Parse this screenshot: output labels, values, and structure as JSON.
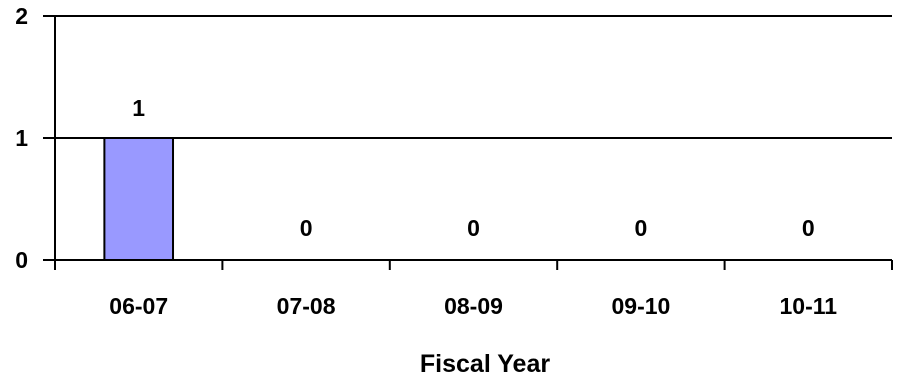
{
  "chart_data": {
    "type": "bar",
    "title": "",
    "xlabel": "Fiscal Year",
    "ylabel": "",
    "categories": [
      "06-07",
      "07-08",
      "08-09",
      "09-10",
      "10-11"
    ],
    "values": [
      1,
      0,
      0,
      0,
      0
    ],
    "data_labels": [
      "1",
      "0",
      "0",
      "0",
      "0"
    ],
    "ylim": [
      0,
      2
    ],
    "yticks": [
      0,
      1,
      2
    ],
    "ytick_labels": [
      "0",
      "1",
      "2"
    ],
    "grid": true,
    "legend": "none",
    "colors": {
      "bar_fill": "#9999ff",
      "bar_stroke": "#000000",
      "axis": "#000000"
    }
  }
}
